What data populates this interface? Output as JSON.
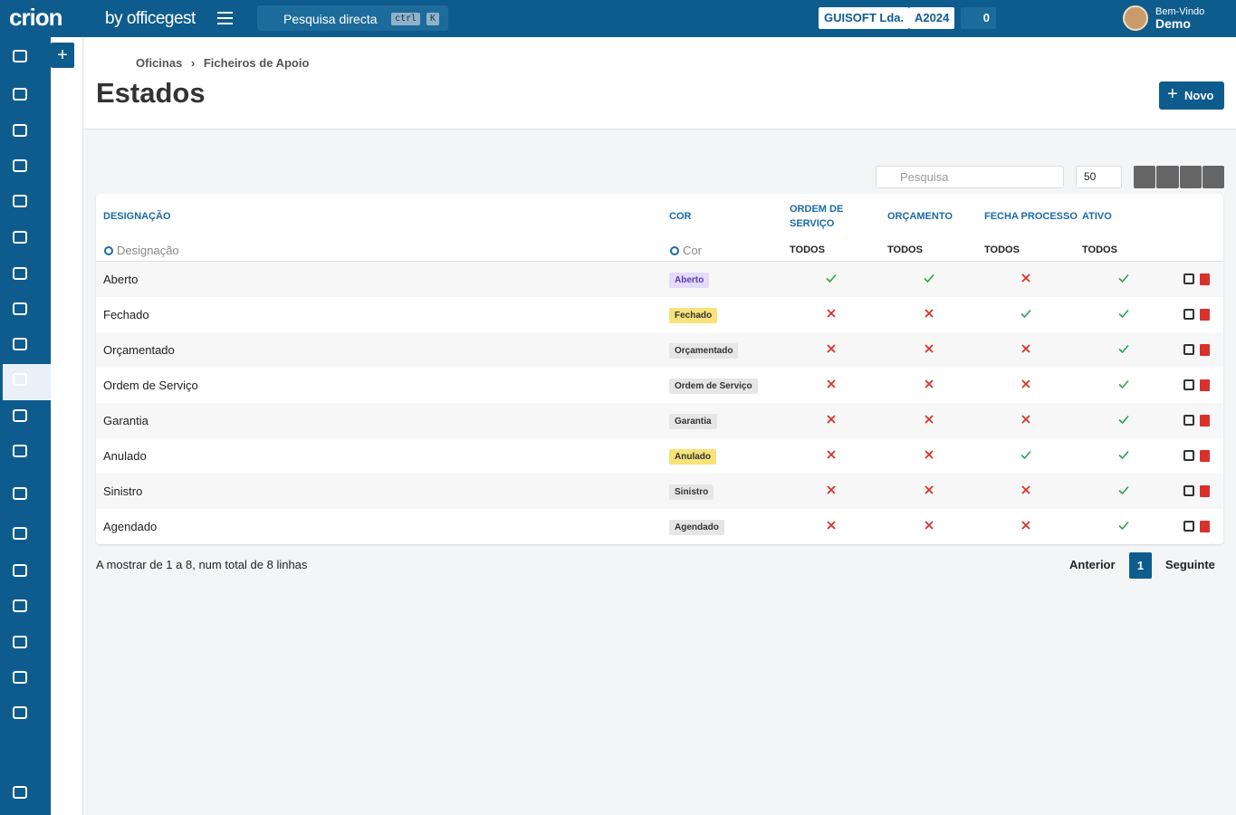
{
  "header": {
    "logo": "crion",
    "logo_sub": "by officegest",
    "search": "Pesquisa directa",
    "shortcut": [
      "ctrl",
      "K"
    ],
    "company": "GUISOFT Lda.",
    "year": "A2024",
    "tasks": 0,
    "greeting": "Bem-Vindo",
    "user": "Demo"
  },
  "breadcrumb": [
    "Oficinas",
    "Ficheiros de Apoio"
  ],
  "title": "Estados",
  "new_button": "Novo",
  "toolbar": {
    "search": "Pesquisa",
    "page_size": 50
  },
  "table": {
    "columns": [
      "DESIGNAÇÃO",
      "COR",
      "ORDEM DE SERVIÇO",
      "ORÇAMENTO",
      "FECHA PROCESSO",
      "ATIVO"
    ],
    "filters": [
      "Designação",
      "Cor",
      "TODOS",
      "TODOS",
      "TODOS",
      "TODOS"
    ],
    "rows": [
      {
        "name": "Aberto",
        "tag": "Aberto",
        "tag_color": "#e4dafb",
        "flags": [
          true,
          true,
          false,
          true
        ]
      },
      {
        "name": "Fechado",
        "tag": "Fechado",
        "tag_color": "#f8e27a",
        "flags": [
          false,
          false,
          true,
          true
        ]
      },
      {
        "name": "Orçamentado",
        "tag": "Orçamentado",
        "tag_color": "#e6e6e6",
        "flags": [
          false,
          false,
          false,
          true
        ]
      },
      {
        "name": "Ordem de Serviço",
        "tag": "Ordem de Serviço",
        "tag_color": "#e6e6e6",
        "flags": [
          false,
          false,
          false,
          true
        ]
      },
      {
        "name": "Garantia",
        "tag": "Garantia",
        "tag_color": "#e6e6e6",
        "flags": [
          false,
          false,
          false,
          true
        ]
      },
      {
        "name": "Anulado",
        "tag": "Anulado",
        "tag_color": "#f8e27a",
        "flags": [
          false,
          false,
          true,
          true
        ]
      },
      {
        "name": "Sinistro",
        "tag": "Sinistro",
        "tag_color": "#e6e6e6",
        "flags": [
          false,
          false,
          false,
          true
        ]
      },
      {
        "name": "Agendado",
        "tag": "Agendado",
        "tag_color": "#e6e6e6",
        "flags": [
          false,
          false,
          false,
          true
        ]
      }
    ]
  },
  "footer": {
    "info": "A mostrar de 1 a 8, num total de 8 linhas",
    "prev": "Anterior",
    "page": 1,
    "next": "Seguinte"
  }
}
